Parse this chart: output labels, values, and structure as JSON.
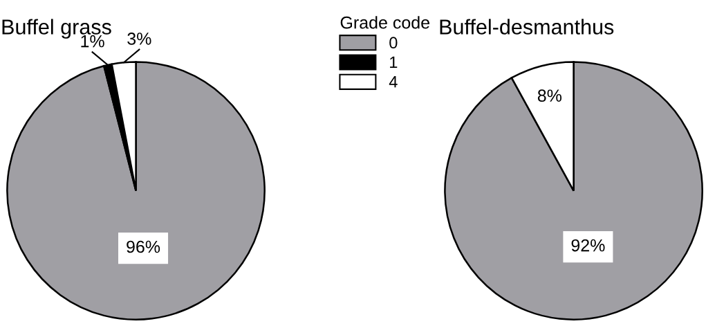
{
  "chart_data": [
    {
      "type": "pie",
      "title": "Buffel grass",
      "categories": [
        "0",
        "1",
        "4"
      ],
      "values": [
        96,
        1,
        3
      ],
      "value_labels": [
        "96%",
        "1%",
        "3%"
      ],
      "colors": [
        "#a09fa4",
        "#000000",
        "#ffffff"
      ],
      "legend": "right",
      "legend_title": "Grade code"
    },
    {
      "type": "pie",
      "title": "Buffel-desmanthus",
      "categories": [
        null,
        null
      ],
      "values": [
        92,
        8
      ],
      "value_labels": [
        "92%",
        "8%"
      ],
      "colors": [
        "#a09fa4",
        "#ffffff"
      ]
    }
  ]
}
